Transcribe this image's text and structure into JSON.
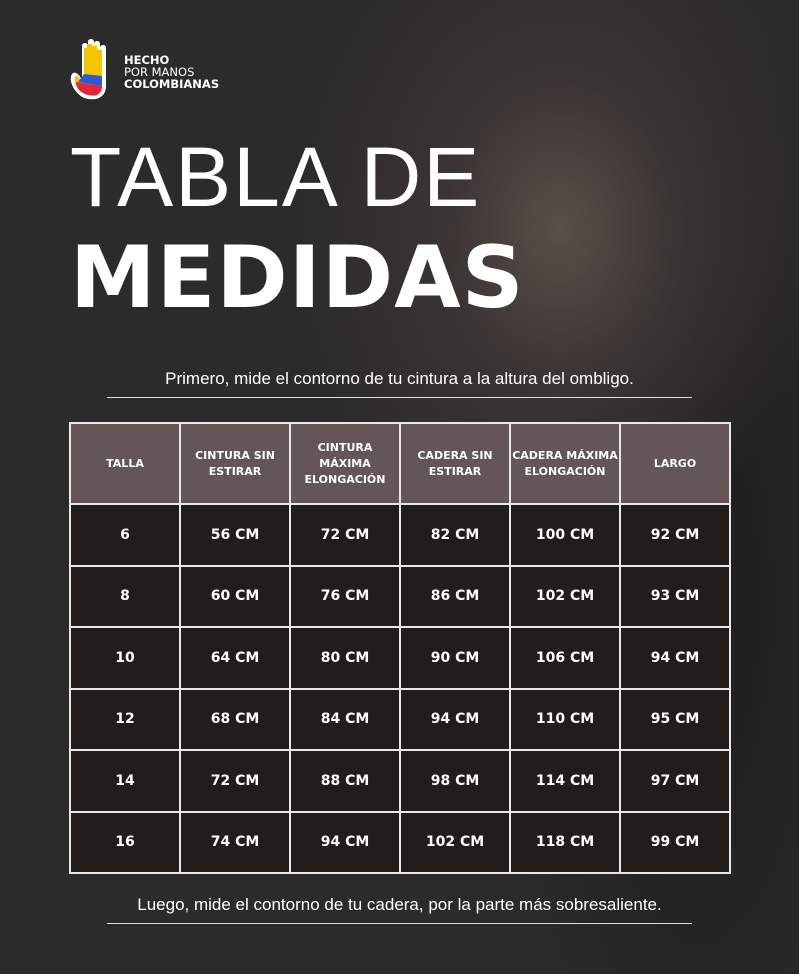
{
  "logo": {
    "line1": "HECHO",
    "line2": "POR MANOS",
    "line3": "COLOMBIANAS"
  },
  "title": {
    "line1": "TABLA DE",
    "line2": "MEDIDAS"
  },
  "note_top": "Primero, mide  el contorno de tu cintura a la altura del ombligo.",
  "note_bottom": "Luego, mide el contorno de tu cadera, por la parte más sobresaliente.",
  "table": {
    "headers": [
      "TALLA",
      "CINTURA SIN ESTIRAR",
      "CINTURA MÁXIMA ELONGACIÓN",
      "CADERA SIN ESTIRAR",
      "CADERA MÁXIMA ELONGACIÓN",
      "LARGO"
    ],
    "rows": [
      [
        "6",
        "56 CM",
        "72 CM",
        "82 CM",
        "100 CM",
        "92 CM"
      ],
      [
        "8",
        "60 CM",
        "76 CM",
        "86 CM",
        "102 CM",
        "93 CM"
      ],
      [
        "10",
        "64 CM",
        "80 CM",
        "90 CM",
        "106 CM",
        "94 CM"
      ],
      [
        "12",
        "68 CM",
        "84 CM",
        "94 CM",
        "110 CM",
        "95 CM"
      ],
      [
        "14",
        "72 CM",
        "88 CM",
        "98 CM",
        "114 CM",
        "97 CM"
      ],
      [
        "16",
        "74 CM",
        "94 CM",
        "102 CM",
        "118 CM",
        "99 CM"
      ]
    ]
  },
  "colors": {
    "header": "#645557",
    "cell": "#201d1b",
    "flag_yellow": "#f5c400",
    "flag_blue": "#2a5bd7",
    "flag_red": "#e6233a"
  }
}
